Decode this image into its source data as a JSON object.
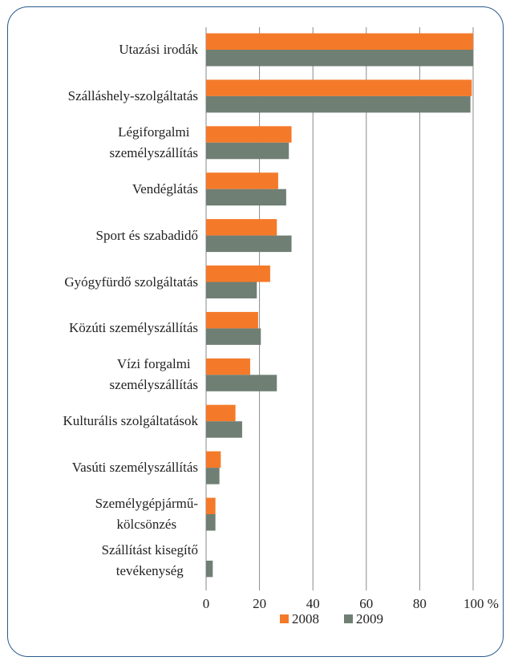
{
  "chart_data": {
    "type": "bar",
    "orientation": "horizontal",
    "categories": [
      "Utazási irodák",
      "Szálláshely-szolgáltatás",
      "Légiforgalmi\nszemélyszállítás",
      "Vendéglátás",
      "Sport és szabadidő",
      "Gyógyfürdő szolgáltatás",
      "Közúti személyszállítás",
      "Vízi forgalmi\nszemélyszállítás",
      "Kulturális szolgáltatások",
      "Vasúti személyszállítás",
      "Személygépjármű-\nkölcsönzés",
      "Szállítást kisegítő\ntevékenység"
    ],
    "series": [
      {
        "name": "2008",
        "color": "#f47a2a",
        "values": [
          100,
          99.5,
          32,
          27,
          26.5,
          24,
          19.5,
          16.5,
          11,
          5.5,
          3.5,
          0
        ]
      },
      {
        "name": "2009",
        "color": "#6f7f74",
        "values": [
          100,
          99,
          31,
          30,
          32,
          19,
          20.5,
          26.5,
          13.5,
          5,
          3.5,
          2.5
        ]
      }
    ],
    "xlim": [
      0,
      100
    ],
    "xticks": [
      0,
      20,
      40,
      60,
      80,
      {
        "value": 100,
        "label": "100 %"
      }
    ],
    "grid": true,
    "legend": "bottom"
  }
}
